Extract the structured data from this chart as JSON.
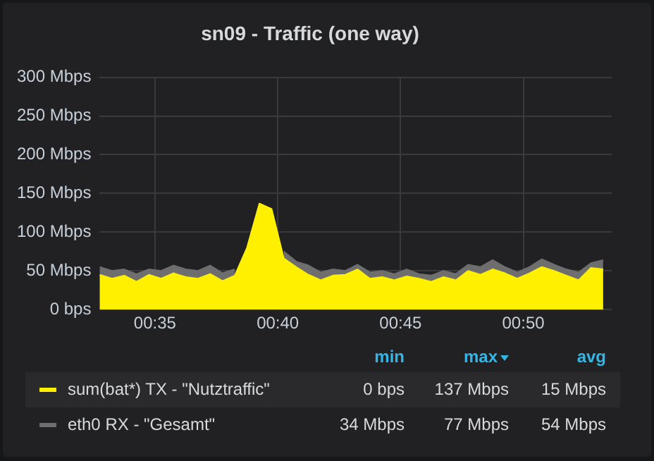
{
  "chart_data": {
    "type": "area",
    "title": "sn09 - Traffic (one way)",
    "x": [
      0.5458,
      0.5542,
      0.5625,
      0.5708,
      0.5792,
      0.5875,
      0.5958,
      0.6042,
      0.6125,
      0.6208,
      0.6292,
      0.6375,
      0.6458,
      0.6542,
      0.6625,
      0.6708,
      0.6792,
      0.6875,
      0.6958,
      0.7042,
      0.7125,
      0.7208,
      0.7292,
      0.7375,
      0.7458,
      0.7542,
      0.7625,
      0.7708,
      0.7792,
      0.7875,
      0.7958,
      0.8042,
      0.8125,
      0.8208,
      0.8292,
      0.8375,
      0.8458,
      0.8542,
      0.8625,
      0.8708,
      0.8792,
      0.8875
    ],
    "series": [
      {
        "name": "sum(bat*) TX - \"Nutztraffic\"",
        "color": "#fff000",
        "values": [
          45,
          40,
          44,
          36,
          45,
          40,
          47,
          42,
          40,
          46,
          37,
          44,
          80,
          137,
          130,
          66,
          55,
          45,
          38,
          44,
          45,
          52,
          40,
          42,
          38,
          43,
          40,
          36,
          42,
          38,
          50,
          45,
          52,
          47,
          40,
          47,
          55,
          50,
          44,
          38,
          54,
          52
        ]
      },
      {
        "name": "eth0 RX - \"Gesamt\"",
        "color": "#6e6e6e",
        "values": [
          55,
          50,
          52,
          46,
          52,
          50,
          57,
          52,
          50,
          57,
          47,
          52,
          null,
          null,
          null,
          75,
          62,
          57,
          48,
          52,
          50,
          58,
          48,
          50,
          46,
          52,
          46,
          44,
          50,
          46,
          58,
          55,
          64,
          55,
          48,
          55,
          65,
          58,
          52,
          48,
          60,
          64
        ]
      }
    ],
    "xlim": [
      0.5458,
      0.8933
    ],
    "xticks": [
      {
        "value": 0.5833,
        "label": "00:35"
      },
      {
        "value": 0.6667,
        "label": "00:40"
      },
      {
        "value": 0.75,
        "label": "00:45"
      },
      {
        "value": 0.8333,
        "label": "00:50"
      }
    ],
    "ylim": [
      0,
      300
    ],
    "yticks": [
      {
        "value": 0,
        "label": "0 bps"
      },
      {
        "value": 50,
        "label": "50 Mbps"
      },
      {
        "value": 100,
        "label": "100 Mbps"
      },
      {
        "value": 150,
        "label": "150 Mbps"
      },
      {
        "value": 200,
        "label": "200 Mbps"
      },
      {
        "value": 250,
        "label": "250 Mbps"
      },
      {
        "value": 300,
        "label": "300 Mbps"
      }
    ],
    "grid": true,
    "legend": "bottom",
    "annotations": [
      "min",
      "max",
      "avg",
      "0 bps",
      "137 Mbps",
      "15 Mbps",
      "34 Mbps",
      "77 Mbps",
      "54 Mbps"
    ]
  }
}
